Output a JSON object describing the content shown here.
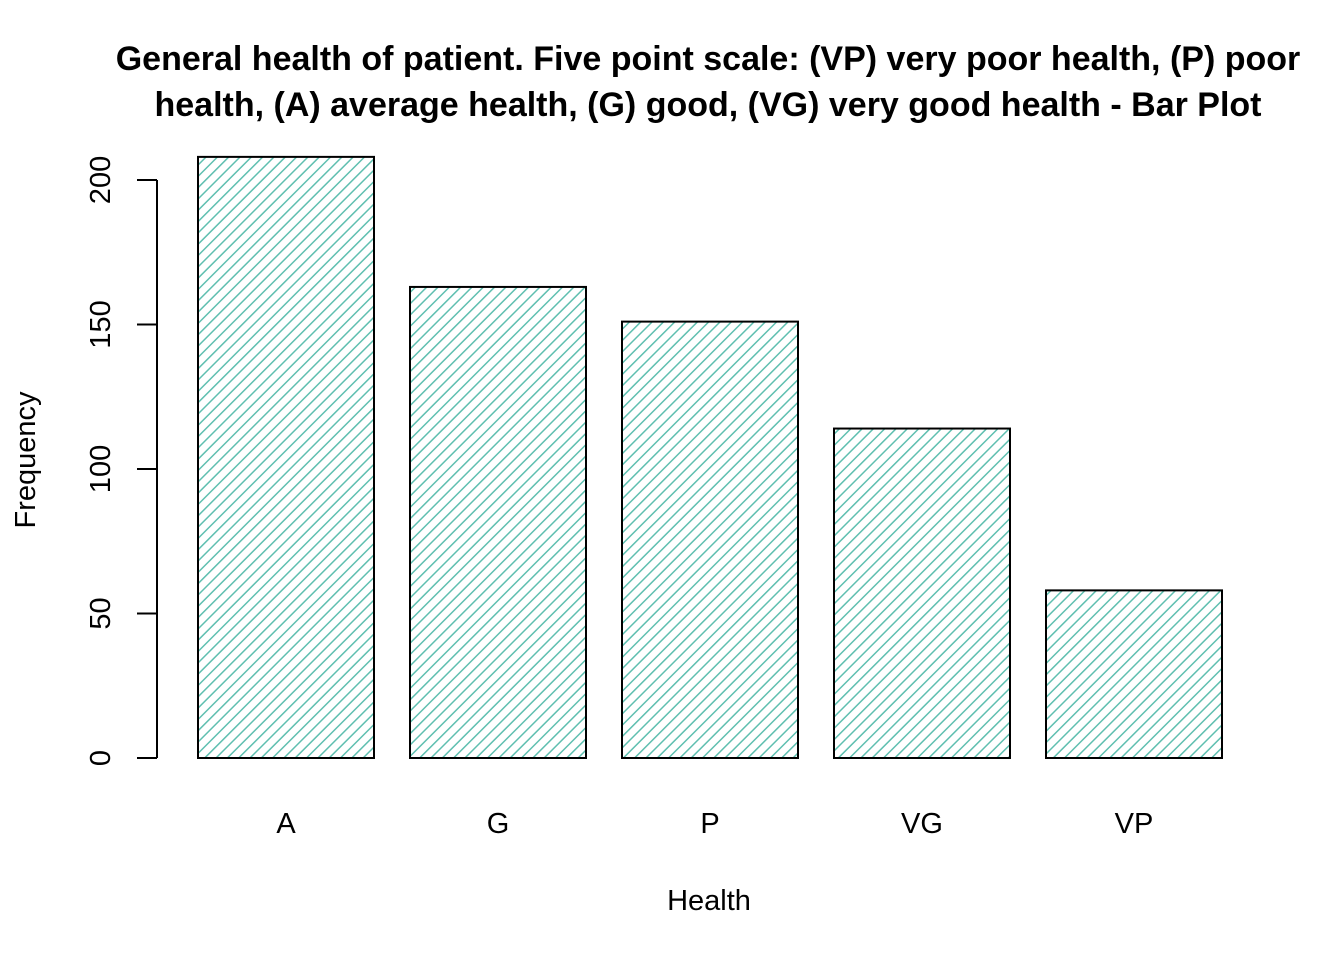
{
  "chart_data": {
    "type": "bar",
    "title_lines": [
      "General health of patient. Five point scale: (VP) very poor health, (P) poor",
      "health, (A) average health, (G) good, (VG) very good health - Bar Plot"
    ],
    "xlabel": "Health",
    "ylabel": "Frequency",
    "categories": [
      "A",
      "G",
      "P",
      "VG",
      "VP"
    ],
    "values": [
      208,
      163,
      151,
      114,
      58
    ],
    "ylim": [
      0,
      208
    ],
    "yticks": [
      0,
      50,
      100,
      150,
      200
    ],
    "bar_fill": "hatched",
    "hatch_color": "#5fbfb0",
    "grid": false,
    "legend": "none"
  }
}
